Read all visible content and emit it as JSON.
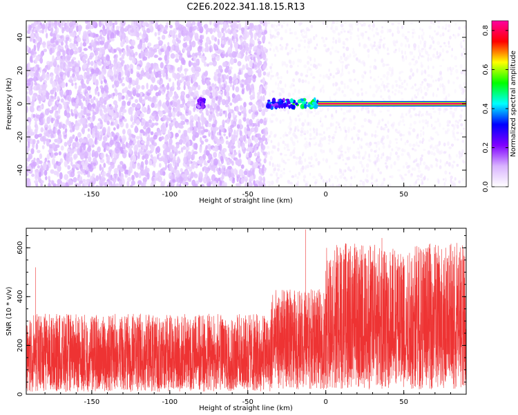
{
  "title": "C2E6.2022.341.18.15.R13",
  "chart_data": [
    {
      "type": "heatmap",
      "xlabel": "Height of straight line (km)",
      "ylabel": "Frequency (Hz)",
      "xlim": [
        -192,
        90
      ],
      "ylim": [
        -50,
        50
      ],
      "x_ticks": [
        -150,
        -100,
        -50,
        0,
        50
      ],
      "y_ticks": [
        -40,
        -20,
        0,
        20,
        40
      ],
      "colorbar": {
        "label": "Normalized spectral amplitude",
        "range": [
          0,
          0.85
        ],
        "ticks": [
          0.0,
          0.2,
          0.4,
          0.6,
          0.8
        ],
        "colors": [
          "#ffffff",
          "#d9b3ff",
          "#8000ff",
          "#0000ff",
          "#00ffff",
          "#00ff00",
          "#ffff00",
          "#ff0000",
          "#ff00a0"
        ]
      },
      "regions": [
        {
          "x_range": [
            -192,
            -38
          ],
          "freq_range": [
            -50,
            50
          ],
          "level": "dense",
          "amplitude_range": [
            0.05,
            0.12
          ]
        },
        {
          "x_range": [
            -38,
            90
          ],
          "freq_range": [
            -50,
            50
          ],
          "level": "sparse",
          "amplitude_range": [
            0.02,
            0.06
          ]
        }
      ],
      "features": [
        {
          "x_range": [
            -82,
            -78
          ],
          "freq": 0,
          "amplitude": 0.25
        },
        {
          "x_range": [
            -37,
            -25
          ],
          "freq": 0,
          "amplitude": 0.35
        },
        {
          "x_range": [
            -25,
            -5
          ],
          "freq": 0,
          "amplitude": 0.5
        },
        {
          "x_range": [
            -5,
            90
          ],
          "freq": 0,
          "amplitude": 0.82
        }
      ]
    },
    {
      "type": "line",
      "xlabel": "Height of straight line (km)",
      "ylabel": "SNR (10 * v/v)",
      "xlim": [
        -192,
        90
      ],
      "ylim": [
        0,
        680
      ],
      "x_ticks": [
        -150,
        -100,
        -50,
        0,
        50
      ],
      "y_ticks": [
        0,
        200,
        400,
        600
      ],
      "color": "#ee3333",
      "segments": [
        {
          "x_range": [
            -192,
            -35
          ],
          "median": 150,
          "low": 10,
          "high": 330
        },
        {
          "x_range": [
            -35,
            0
          ],
          "median": 200,
          "low": 20,
          "high": 430
        },
        {
          "x_range": [
            0,
            90
          ],
          "median": 270,
          "low": 20,
          "high": 620
        }
      ],
      "peaks": [
        {
          "x": -186,
          "y": 520
        },
        {
          "x": -13,
          "y": 675
        },
        {
          "x": 23,
          "y": 610
        },
        {
          "x": 36,
          "y": 640
        },
        {
          "x": 84,
          "y": 620
        }
      ]
    }
  ]
}
